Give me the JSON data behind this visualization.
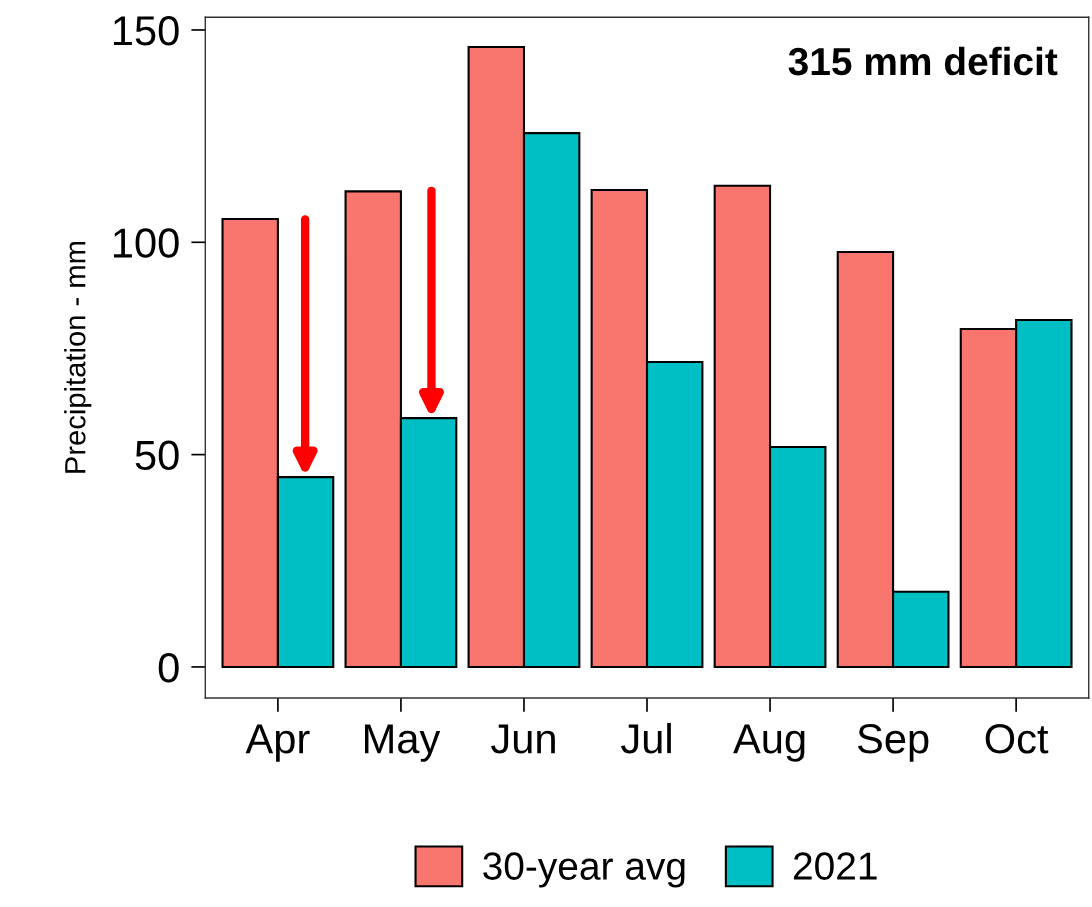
{
  "chart_data": {
    "type": "bar",
    "ylabel": "Precipitation - mm",
    "categories": [
      "Apr",
      "May",
      "Jun",
      "Jul",
      "Aug",
      "Sep",
      "Oct"
    ],
    "series": [
      {
        "name": "30-year avg",
        "color": "#f8766d",
        "values": [
          105.5,
          112,
          146,
          112.3,
          113.3,
          97.7,
          79.6
        ]
      },
      {
        "name": "2021",
        "color": "#00bfc4",
        "values": [
          44.7,
          58.6,
          125.7,
          71.8,
          51.8,
          17.7,
          81.7
        ]
      }
    ],
    "ylim": [
      -7.3,
      153
    ],
    "yticks": [
      0,
      50,
      100,
      150
    ],
    "grid": false,
    "legend": "bottom",
    "annotations": [
      "315 mm deficit"
    ]
  }
}
